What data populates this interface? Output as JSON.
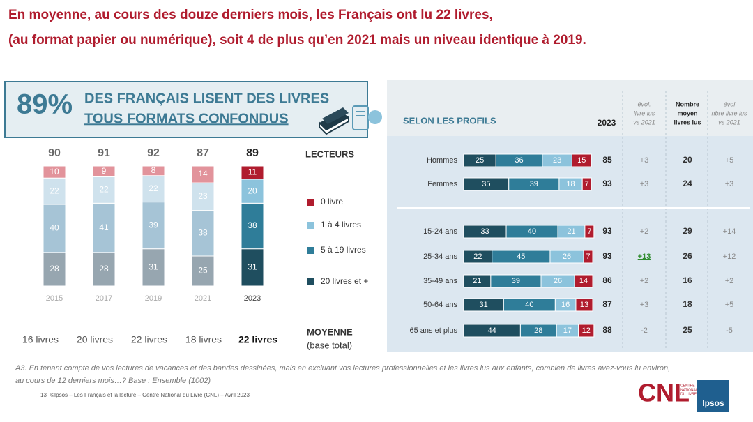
{
  "header": {
    "line1": "En moyenne, au cours des douze derniers mois, les Français ont lu 22 livres,",
    "line2": "(au format papier ou numérique), soit 4 de plus qu’en 2021 mais un niveau identique à 2019."
  },
  "banner": {
    "pct": "89%",
    "line1": "DES FRANÇAIS LISENT DES LIVRES",
    "line2": "TOUS FORMATS CONFONDUS"
  },
  "years_chart": {
    "type": "bar",
    "categories": [
      "2015",
      "2017",
      "2019",
      "2021",
      "2023"
    ],
    "totals": [
      90,
      91,
      92,
      87,
      89
    ],
    "series": [
      {
        "name": "20 livres et +",
        "color": "#1f4e5f",
        "past_color": "#97a6b0",
        "values": [
          28,
          28,
          31,
          25,
          31
        ]
      },
      {
        "name": "5 à 19 livres",
        "color": "#2f7d99",
        "past_color": "#a6c4d6",
        "values": [
          40,
          41,
          39,
          38,
          38
        ]
      },
      {
        "name": "1 à 4 livres",
        "color": "#8cc3dc",
        "past_color": "#cfe2ed",
        "values": [
          22,
          22,
          22,
          23,
          20
        ]
      },
      {
        "name": "0 livre",
        "color": "#b01c2e",
        "past_color": "#e2939b",
        "values": [
          10,
          9,
          8,
          14,
          11
        ]
      }
    ],
    "legend_title": "LECTEURS",
    "averages": [
      "16 livres",
      "20 livres",
      "22 livres",
      "18 livres",
      "22 livres"
    ],
    "average_title": "MOYENNE",
    "average_subtitle": "(base total)"
  },
  "profiles": {
    "type": "bar",
    "title": "SELON LES PROFILS",
    "col_total": "2023",
    "col_evol": [
      "évol.",
      "livre lus",
      "vs 2021"
    ],
    "col_mean": [
      "Nombre",
      "moyen",
      "livres lus"
    ],
    "col_mean_evol": [
      "évol",
      "nbre livre lus",
      "vs 2021"
    ],
    "categories": [
      "Hommes",
      "Femmes",
      "15-24 ans",
      "25-34 ans",
      "35-49 ans",
      "50-64 ans",
      "65 ans et plus"
    ],
    "series": [
      {
        "name": "20 livres et +",
        "color": "#1f4e5f",
        "values": [
          25,
          35,
          33,
          22,
          21,
          31,
          44
        ]
      },
      {
        "name": "5 à 19 livres",
        "color": "#2f7d99",
        "values": [
          36,
          39,
          40,
          45,
          39,
          40,
          28
        ]
      },
      {
        "name": "1 à 4 livres",
        "color": "#8cc3dc",
        "values": [
          23,
          18,
          21,
          26,
          26,
          16,
          17
        ]
      },
      {
        "name": "0 livre",
        "color": "#b01c2e",
        "values": [
          15,
          7,
          7,
          7,
          14,
          13,
          12
        ]
      }
    ],
    "totals": [
      85,
      93,
      93,
      93,
      86,
      87,
      88
    ],
    "evol": [
      "+3",
      "+3",
      "+2",
      "+13",
      "+2",
      "+3",
      "-2"
    ],
    "means": [
      20,
      24,
      29,
      26,
      16,
      18,
      25
    ],
    "mean_evol": [
      "+5",
      "+3",
      "+14",
      "+12",
      "+2",
      "+5",
      "-5"
    ],
    "highlight_rows": [
      3
    ],
    "highlight_color": "#2e8b2e"
  },
  "footer": {
    "note1": "A3. En tenant compte de vos lectures de vacances et des bandes dessinées, mais en excluant vos lectures professionnelles et les livres lus aux enfants, combien de livres avez-vous lu environ,",
    "note2": "au cours de 12 derniers mois…? Base : Ensemble (1002)",
    "page": "13",
    "credit": "©Ipsos – Les Français et la lecture – Centre National du Livre (CNL) – Avril 2023",
    "logo_cnl": "CNL",
    "logo_cnl_sub": [
      "CENTRE",
      "NATIONAL",
      "DU LIVRE"
    ],
    "logo_ipsos": "Ipsos"
  }
}
